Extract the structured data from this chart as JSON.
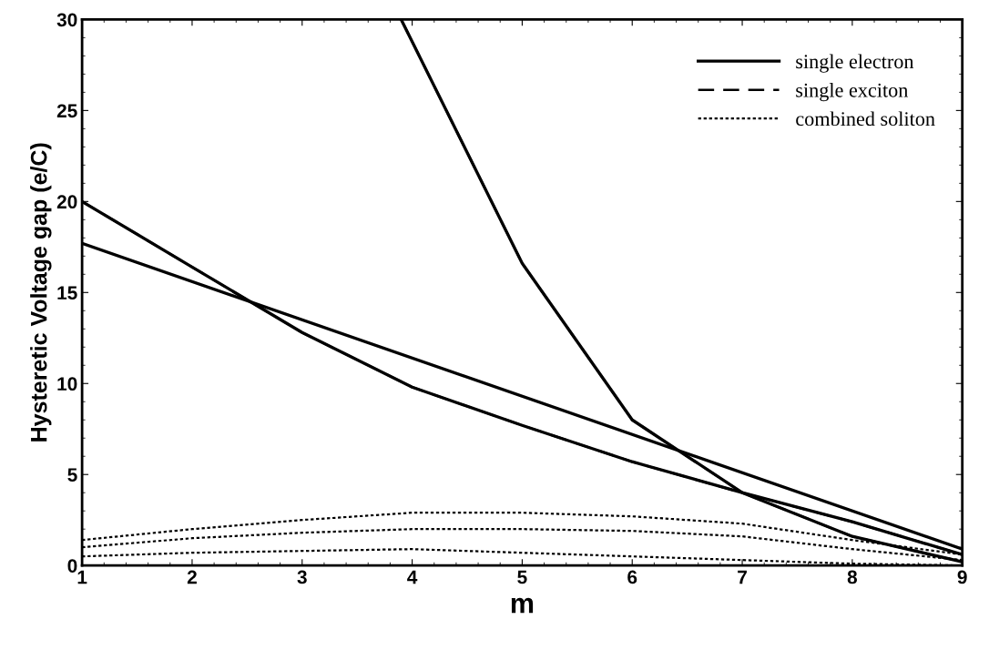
{
  "chart_data": {
    "type": "line",
    "xlabel": "m",
    "ylabel": "Hysteretic Voltage gap (e/C)",
    "xlim": [
      1,
      9
    ],
    "xticks": [
      1,
      2,
      3,
      4,
      5,
      6,
      7,
      8,
      9
    ],
    "ylim": [
      0,
      30
    ],
    "yticks": [
      0,
      5,
      10,
      15,
      20,
      25,
      30
    ],
    "legend": "top right",
    "grid": false,
    "series": [
      {
        "name": "single electron",
        "color": "#000000",
        "line_style": "solid",
        "x": [
          1,
          9
        ],
        "values": [
          17.7,
          0.9
        ]
      },
      {
        "color": "#000000",
        "line_style": "solid",
        "x": [
          1,
          2,
          3,
          4,
          5,
          6,
          7,
          8,
          9
        ],
        "values": [
          20,
          16.4,
          12.8,
          9.8,
          7.7,
          5.7,
          4.0,
          2.4,
          0.6
        ]
      },
      {
        "color": "#000000",
        "line_style": "solid",
        "x": [
          3.9,
          5,
          6,
          7,
          8,
          9
        ],
        "values": [
          30,
          16.6,
          8.0,
          4.0,
          1.6,
          0.2
        ]
      },
      {
        "name": "single exciton",
        "color": "#000000",
        "line_style": "dashed",
        "x": [
          1,
          2,
          3,
          4,
          5,
          6,
          7,
          8,
          9
        ],
        "values": [
          20,
          16.4,
          12.8,
          9.8,
          7.7,
          5.7,
          4.0,
          2.4,
          0.6
        ]
      },
      {
        "color": "#000000",
        "line_style": "dashed",
        "x": [
          3.9,
          5,
          6,
          7,
          8,
          9
        ],
        "values": [
          30,
          16.6,
          8.0,
          4.0,
          1.6,
          0.2
        ]
      },
      {
        "name": "combined soliton",
        "color": "#000000",
        "line_style": "dotted",
        "x": [
          1,
          2,
          3,
          4,
          5,
          6,
          7,
          8,
          9
        ],
        "values": [
          1.4,
          2.0,
          2.5,
          2.9,
          2.9,
          2.7,
          2.3,
          1.4,
          0.6
        ]
      },
      {
        "color": "#000000",
        "line_style": "dotted",
        "x": [
          1,
          2,
          3,
          4,
          5,
          6,
          7,
          8,
          9
        ],
        "values": [
          1.0,
          1.5,
          1.8,
          2.0,
          2.0,
          1.9,
          1.6,
          0.9,
          0.3
        ]
      },
      {
        "color": "#000000",
        "line_style": "dotted",
        "x": [
          1,
          2,
          3,
          4,
          5,
          6,
          7,
          8,
          9
        ],
        "values": [
          0.5,
          0.7,
          0.8,
          0.9,
          0.7,
          0.5,
          0.3,
          0.1,
          0.0
        ]
      }
    ]
  }
}
